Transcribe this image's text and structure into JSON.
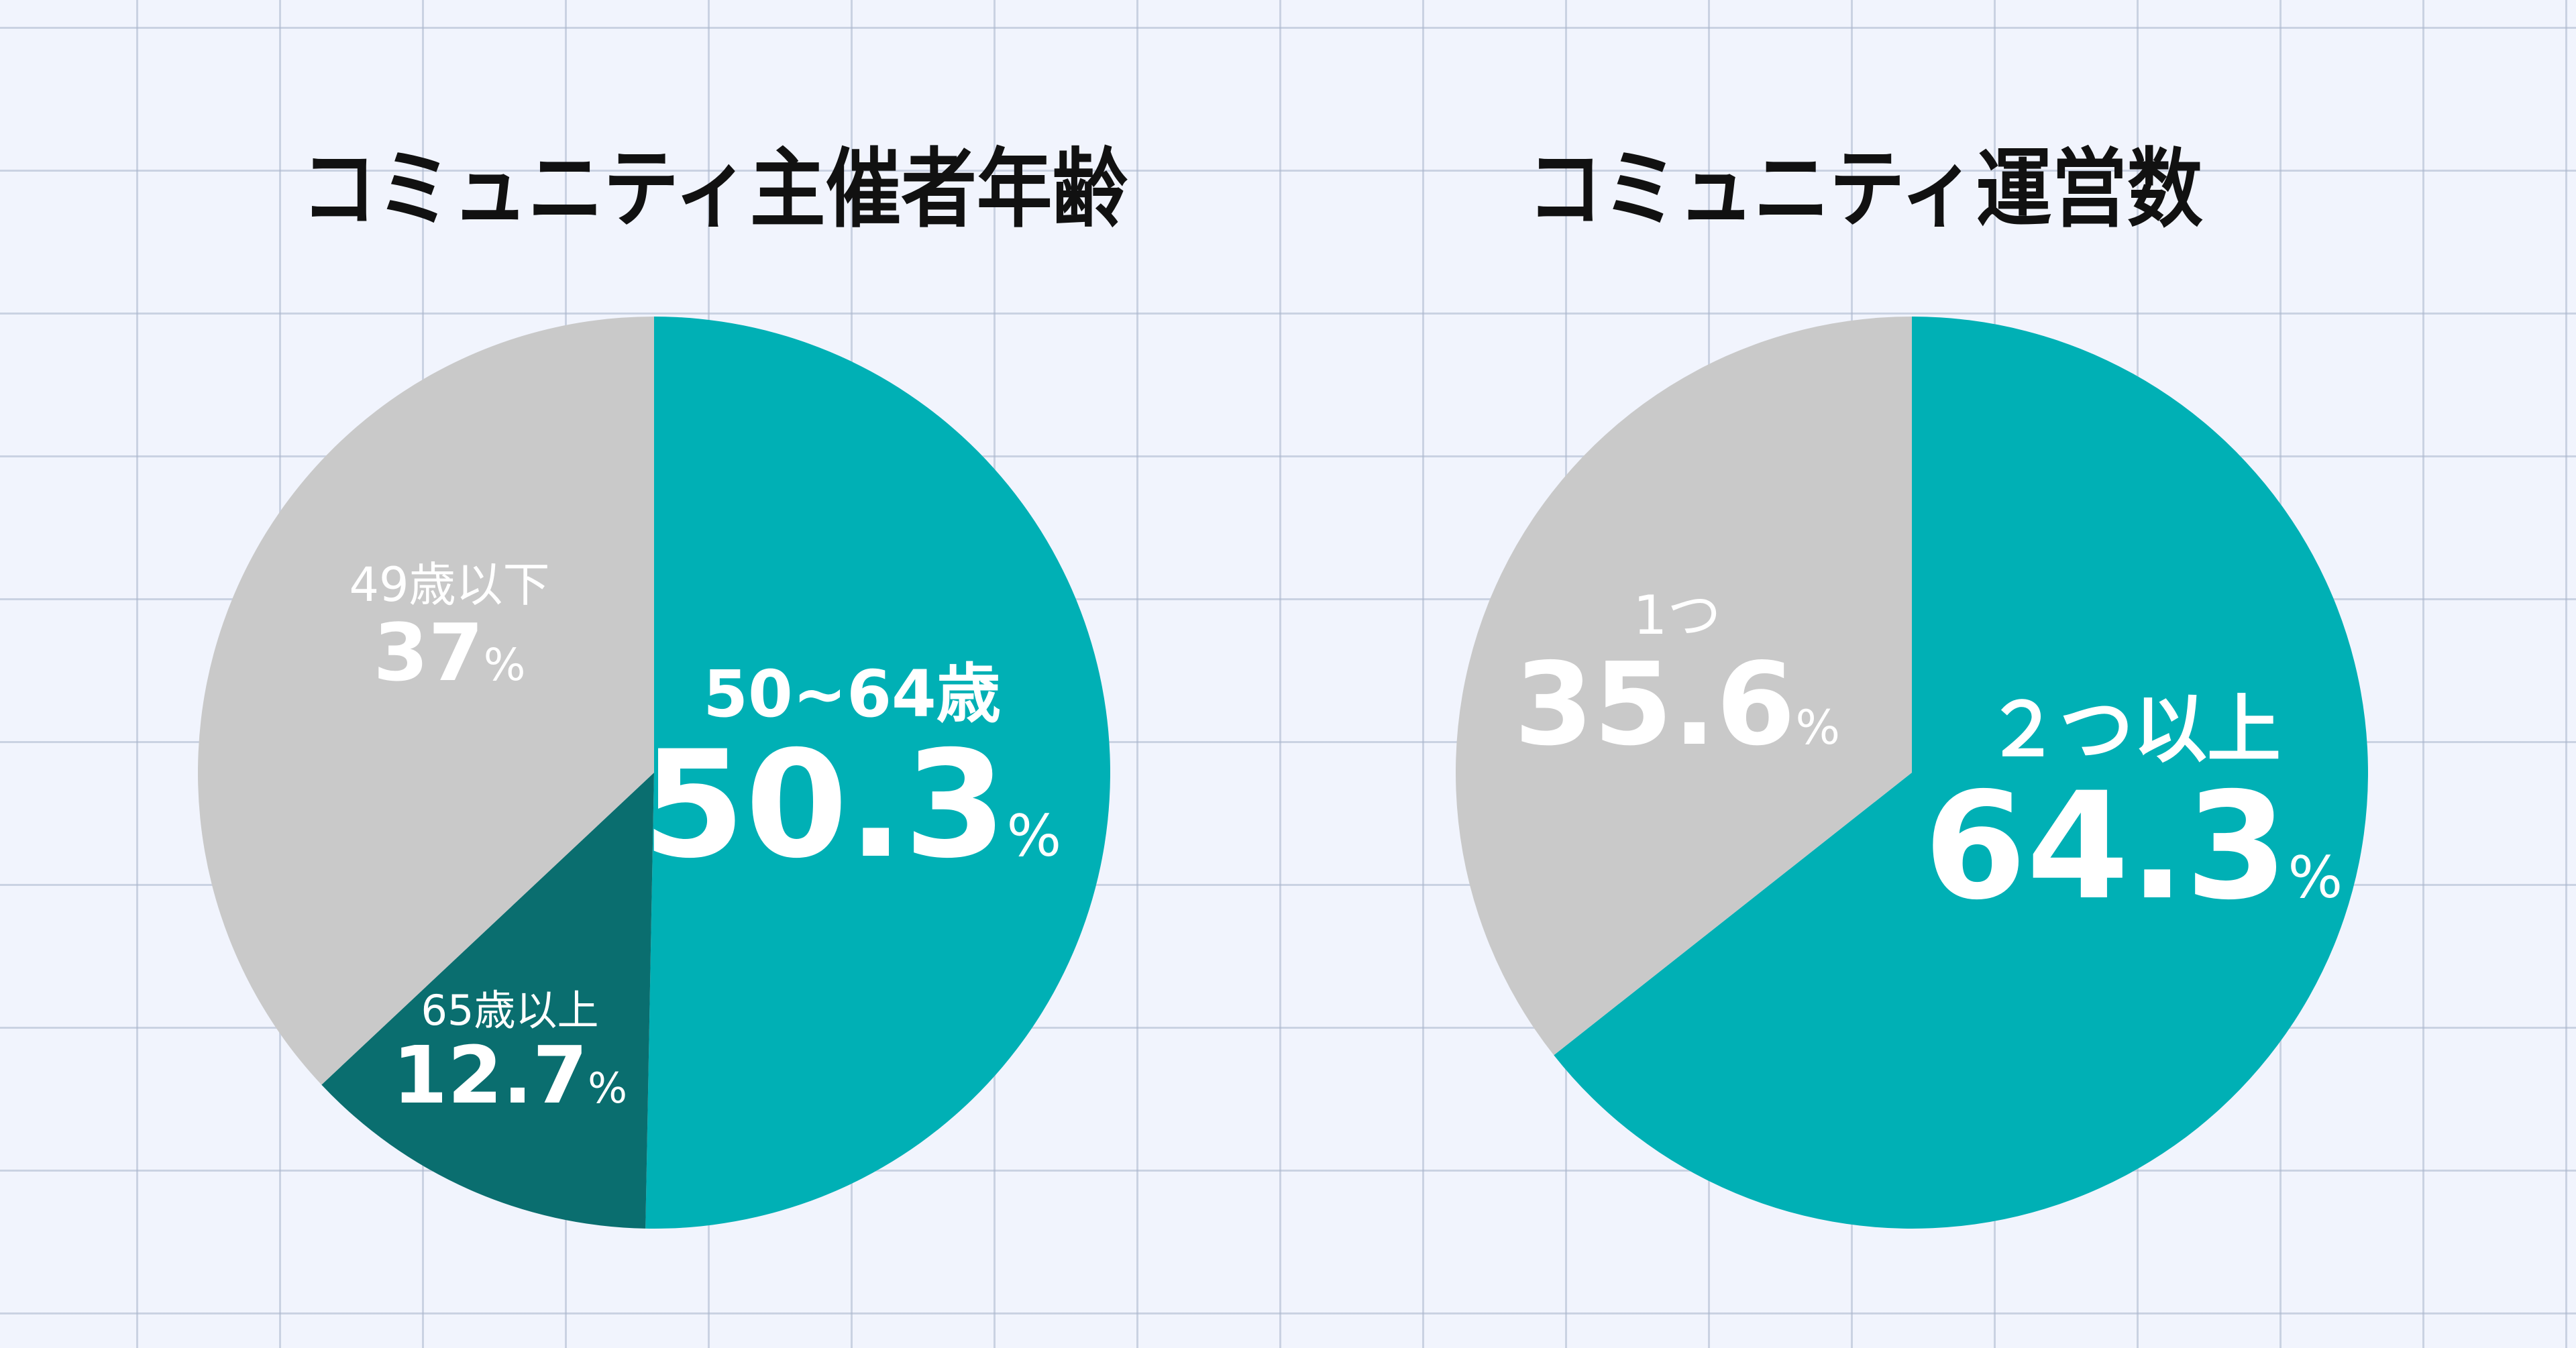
{
  "chart_data": [
    {
      "type": "pie",
      "title": "コミュニティ主催者年齢",
      "categories": [
        "50~64歳",
        "65歳以上",
        "49歳以下"
      ],
      "values": [
        50.3,
        12.7,
        37
      ],
      "display_values": [
        "50.3",
        "12.7",
        "37"
      ],
      "percent_sign": "%",
      "colors": [
        "#00b0b5",
        "#0a6e6f",
        "#c9c9c9"
      ],
      "start": "12 o'clock",
      "direction": "clockwise"
    },
    {
      "type": "pie",
      "title": "コミュニティ運営数",
      "categories": [
        "２つ以上",
        "1つ"
      ],
      "values": [
        64.3,
        35.6
      ],
      "display_values": [
        "64.3",
        "35.6"
      ],
      "percent_sign": "%",
      "colors": [
        "#00b0b5",
        "#c9c9c9"
      ],
      "start": "12 o'clock",
      "direction": "clockwise"
    }
  ]
}
